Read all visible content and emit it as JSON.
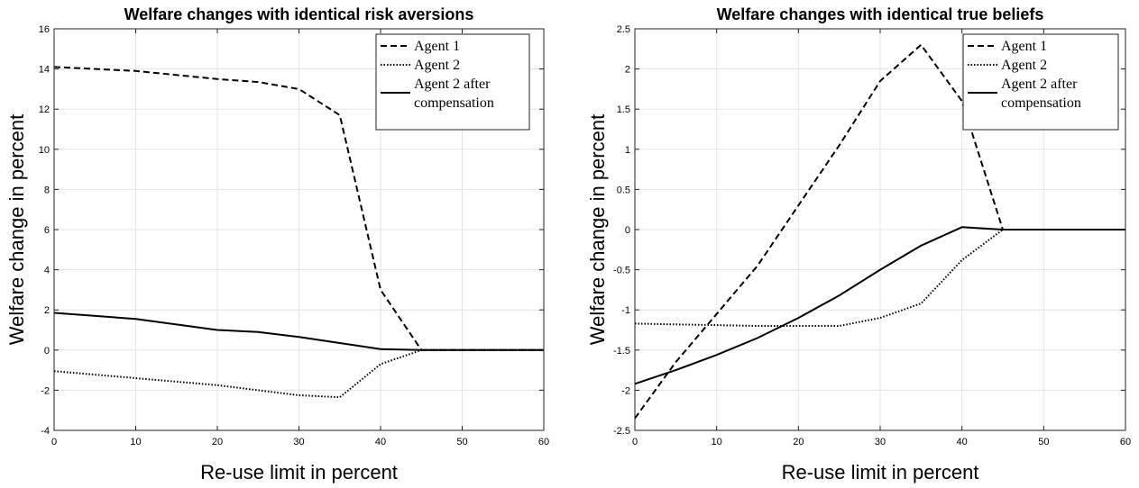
{
  "chart_data": [
    {
      "type": "line",
      "title": "Welfare changes with identical risk aversions",
      "xlabel": "Re-use limit in percent",
      "ylabel": "Welfare change in percent",
      "xlim": [
        0,
        60
      ],
      "ylim": [
        -4,
        16
      ],
      "xticks": [
        "0",
        "10",
        "20",
        "30",
        "40",
        "50",
        "60"
      ],
      "yticks": [
        "-4",
        "-2",
        "0",
        "2",
        "4",
        "6",
        "8",
        "10",
        "12",
        "14",
        "16"
      ],
      "grid": true,
      "legend_position": "top-right",
      "series": [
        {
          "name": "Agent 1",
          "style": "dashed",
          "color": "#000000",
          "x": [
            0,
            10,
            20,
            25,
            30,
            35,
            40,
            45,
            50,
            55,
            60
          ],
          "y": [
            14.1,
            13.9,
            13.5,
            13.35,
            13.0,
            11.7,
            3.0,
            0.0,
            0.0,
            0.0,
            0.0
          ]
        },
        {
          "name": "Agent 2",
          "style": "dotted",
          "color": "#000000",
          "x": [
            0,
            10,
            20,
            25,
            30,
            35,
            40,
            45,
            50,
            55,
            60
          ],
          "y": [
            -1.05,
            -1.4,
            -1.75,
            -2.0,
            -2.25,
            -2.35,
            -0.7,
            0.0,
            0.0,
            0.0,
            0.0
          ]
        },
        {
          "name": "Agent 2 after compensation",
          "legend_lines": [
            "Agent 2 after",
            "compensation"
          ],
          "style": "solid",
          "color": "#000000",
          "x": [
            0,
            10,
            20,
            25,
            30,
            35,
            40,
            45,
            50,
            55,
            60
          ],
          "y": [
            1.85,
            1.55,
            1.0,
            0.9,
            0.65,
            0.35,
            0.05,
            0.0,
            0.0,
            0.0,
            0.0
          ]
        }
      ]
    },
    {
      "type": "line",
      "title": "Welfare changes with identical true beliefs",
      "xlabel": "Re-use limit in percent",
      "ylabel": "Welfare change in percent",
      "xlim": [
        0,
        60
      ],
      "ylim": [
        -2.5,
        2.5
      ],
      "xticks": [
        "0",
        "10",
        "20",
        "30",
        "40",
        "50",
        "60"
      ],
      "yticks": [
        "-2.5",
        "-2",
        "-1.5",
        "-1",
        "-0.5",
        "0",
        "0.5",
        "1",
        "1.5",
        "2",
        "2.5"
      ],
      "grid": true,
      "legend_position": "top-right",
      "series": [
        {
          "name": "Agent 1",
          "style": "dashed",
          "color": "#000000",
          "x": [
            0,
            5,
            10,
            15,
            20,
            25,
            30,
            35,
            40,
            45,
            50,
            55,
            60
          ],
          "y": [
            -2.35,
            -1.65,
            -1.05,
            -0.45,
            0.3,
            1.05,
            1.85,
            2.3,
            1.6,
            0.0,
            0.0,
            0.0,
            0.0
          ]
        },
        {
          "name": "Agent 2",
          "style": "dotted",
          "color": "#000000",
          "x": [
            0,
            5,
            10,
            15,
            20,
            25,
            30,
            35,
            40,
            45,
            50,
            55,
            60
          ],
          "y": [
            -1.17,
            -1.18,
            -1.19,
            -1.2,
            -1.2,
            -1.2,
            -1.1,
            -0.92,
            -0.38,
            0.0,
            0.0,
            0.0,
            0.0
          ]
        },
        {
          "name": "Agent 2 after compensation",
          "legend_lines": [
            "Agent 2 after",
            "compensation"
          ],
          "style": "solid",
          "color": "#000000",
          "x": [
            0,
            5,
            10,
            15,
            20,
            25,
            30,
            35,
            40,
            45,
            50,
            55,
            60
          ],
          "y": [
            -1.92,
            -1.75,
            -1.56,
            -1.35,
            -1.1,
            -0.82,
            -0.5,
            -0.2,
            0.03,
            0.0,
            0.0,
            0.0,
            0.0
          ]
        }
      ]
    }
  ]
}
